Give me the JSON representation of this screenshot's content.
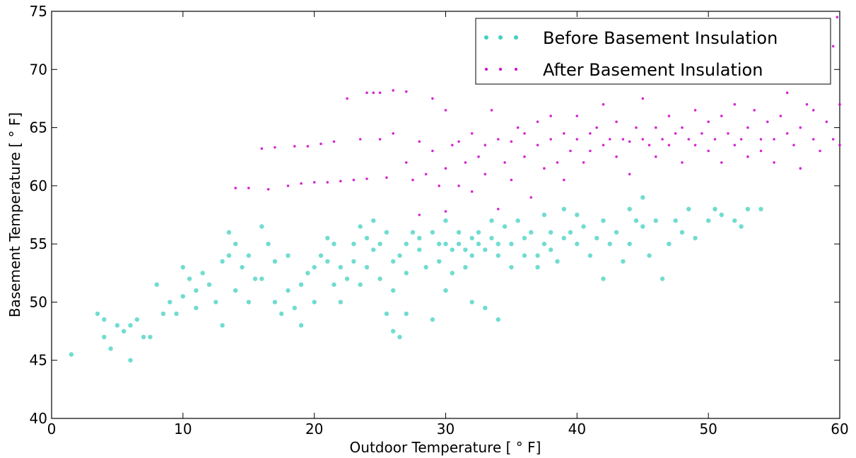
{
  "chart_data": {
    "type": "scatter",
    "title": "",
    "xlabel": "Outdoor Temperature [$^\\circ$F]",
    "xlabel_display": "Outdoor Temperature [ ° F]",
    "ylabel": "Basement Temperature [$^\\circ$F]",
    "ylabel_display": "Basement Temperature [ ° F]",
    "xlim": [
      0,
      60
    ],
    "ylim": [
      40,
      75
    ],
    "xticks": [
      0,
      10,
      20,
      30,
      40,
      50,
      60
    ],
    "xtick_labels": [
      "0",
      "10",
      "20",
      "30",
      "40",
      "50",
      "60"
    ],
    "yticks": [
      40,
      45,
      50,
      55,
      60,
      65,
      70,
      75
    ],
    "ytick_labels": [
      "40",
      "45",
      "50",
      "55",
      "60",
      "65",
      "70",
      "75"
    ],
    "grid": false,
    "legend_position": "top-right",
    "series": [
      {
        "name": "Before Basement Insulation",
        "color": "#40d0c0",
        "marker": "circle",
        "points": [
          [
            1.5,
            45.5
          ],
          [
            3.5,
            49
          ],
          [
            4,
            48.5
          ],
          [
            4,
            47
          ],
          [
            4.5,
            46
          ],
          [
            5,
            48
          ],
          [
            5.5,
            47.5
          ],
          [
            6,
            45
          ],
          [
            6,
            48
          ],
          [
            6.5,
            48.5
          ],
          [
            7,
            47
          ],
          [
            7.5,
            47
          ],
          [
            8,
            51.5
          ],
          [
            8.5,
            49
          ],
          [
            9,
            50
          ],
          [
            9.5,
            49
          ],
          [
            10,
            50.5
          ],
          [
            10,
            53
          ],
          [
            10.5,
            52
          ],
          [
            11,
            49.5
          ],
          [
            11,
            51
          ],
          [
            11.5,
            52.5
          ],
          [
            12,
            51.5
          ],
          [
            12.5,
            50
          ],
          [
            13,
            53.5
          ],
          [
            13,
            48
          ],
          [
            13.5,
            54
          ],
          [
            13.5,
            56
          ],
          [
            14,
            55
          ],
          [
            14,
            51
          ],
          [
            14.5,
            53
          ],
          [
            15,
            54
          ],
          [
            15,
            50
          ],
          [
            15.5,
            52
          ],
          [
            16,
            52
          ],
          [
            16,
            56.5
          ],
          [
            16.5,
            55
          ],
          [
            17,
            53.5
          ],
          [
            17,
            50
          ],
          [
            17.5,
            49
          ],
          [
            18,
            51
          ],
          [
            18,
            54
          ],
          [
            18.5,
            49.5
          ],
          [
            19,
            51.5
          ],
          [
            19,
            48
          ],
          [
            19.5,
            52.5
          ],
          [
            20,
            53
          ],
          [
            20,
            50
          ],
          [
            20.5,
            54
          ],
          [
            21,
            53.5
          ],
          [
            21,
            55.5
          ],
          [
            21.5,
            55
          ],
          [
            21.5,
            51.5
          ],
          [
            22,
            53
          ],
          [
            22,
            50
          ],
          [
            22.5,
            52
          ],
          [
            23,
            55
          ],
          [
            23,
            53.5
          ],
          [
            23.5,
            56.5
          ],
          [
            23.5,
            51.5
          ],
          [
            24,
            55.5
          ],
          [
            24,
            53
          ],
          [
            24.5,
            54.5
          ],
          [
            24.5,
            57
          ],
          [
            25,
            55
          ],
          [
            25,
            52
          ],
          [
            25.5,
            56
          ],
          [
            25.5,
            49
          ],
          [
            26,
            51
          ],
          [
            26,
            53.5
          ],
          [
            26,
            47.5
          ],
          [
            26.5,
            47
          ],
          [
            26.5,
            54
          ],
          [
            27,
            55
          ],
          [
            27,
            52.5
          ],
          [
            27,
            49
          ],
          [
            27.5,
            56
          ],
          [
            28,
            54.5
          ],
          [
            28,
            55.5
          ],
          [
            28.5,
            53
          ],
          [
            29,
            56
          ],
          [
            29,
            48.5
          ],
          [
            29.5,
            55
          ],
          [
            29.5,
            53.5
          ],
          [
            30,
            57
          ],
          [
            30,
            55
          ],
          [
            30,
            51
          ],
          [
            30.5,
            54.5
          ],
          [
            30.5,
            52.5
          ],
          [
            31,
            55
          ],
          [
            31,
            56
          ],
          [
            31.5,
            54.5
          ],
          [
            31.5,
            53
          ],
          [
            32,
            55.5
          ],
          [
            32,
            54
          ],
          [
            32,
            50
          ],
          [
            32.5,
            55
          ],
          [
            32.5,
            56
          ],
          [
            33,
            54.5
          ],
          [
            33,
            49.5
          ],
          [
            33.5,
            55.5
          ],
          [
            33.5,
            57
          ],
          [
            34,
            54
          ],
          [
            34,
            55
          ],
          [
            34,
            48.5
          ],
          [
            34.5,
            56.5
          ],
          [
            35,
            55
          ],
          [
            35,
            53
          ],
          [
            35.5,
            57
          ],
          [
            36,
            55.5
          ],
          [
            36,
            54
          ],
          [
            36.5,
            56
          ],
          [
            37,
            54
          ],
          [
            37,
            53
          ],
          [
            37.5,
            55
          ],
          [
            37.5,
            57.5
          ],
          [
            38,
            54.5
          ],
          [
            38,
            56
          ],
          [
            38.5,
            53.5
          ],
          [
            39,
            55.5
          ],
          [
            39,
            58
          ],
          [
            39.5,
            56
          ],
          [
            40,
            55
          ],
          [
            40,
            57.5
          ],
          [
            40.5,
            56.5
          ],
          [
            41,
            54
          ],
          [
            41.5,
            55.5
          ],
          [
            42,
            52
          ],
          [
            42,
            57
          ],
          [
            42.5,
            55
          ],
          [
            43,
            56
          ],
          [
            43.5,
            53.5
          ],
          [
            44,
            55
          ],
          [
            44,
            58
          ],
          [
            44.5,
            57
          ],
          [
            45,
            56.5
          ],
          [
            45,
            59
          ],
          [
            45.5,
            54
          ],
          [
            46,
            57
          ],
          [
            46.5,
            52
          ],
          [
            47,
            55
          ],
          [
            47.5,
            57
          ],
          [
            48,
            56
          ],
          [
            48.5,
            58
          ],
          [
            49,
            55.5
          ],
          [
            50,
            57
          ],
          [
            50.5,
            58
          ],
          [
            51,
            57.5
          ],
          [
            52,
            57
          ],
          [
            52.5,
            56.5
          ],
          [
            53,
            58
          ],
          [
            54,
            58
          ]
        ]
      },
      {
        "name": "After Basement Insulation",
        "color": "#cc00cc",
        "marker": "circle",
        "points": [
          [
            14,
            59.8
          ],
          [
            15,
            59.8
          ],
          [
            16,
            63.2
          ],
          [
            16.5,
            59.7
          ],
          [
            17,
            63.3
          ],
          [
            18,
            60
          ],
          [
            18.5,
            63.4
          ],
          [
            19,
            60.2
          ],
          [
            19.5,
            63.4
          ],
          [
            20,
            60.3
          ],
          [
            20.5,
            63.6
          ],
          [
            21,
            60.3
          ],
          [
            21.5,
            63.8
          ],
          [
            22,
            60.4
          ],
          [
            22.5,
            67.5
          ],
          [
            23,
            60.5
          ],
          [
            23.5,
            64
          ],
          [
            24,
            60.6
          ],
          [
            24,
            68
          ],
          [
            24.5,
            68
          ],
          [
            25,
            68
          ],
          [
            25,
            64
          ],
          [
            25.5,
            60.7
          ],
          [
            26,
            68.2
          ],
          [
            26,
            64.5
          ],
          [
            27,
            68.1
          ],
          [
            27,
            62
          ],
          [
            27.5,
            60.5
          ],
          [
            28,
            63.8
          ],
          [
            28,
            57.5
          ],
          [
            28.5,
            61
          ],
          [
            29,
            63
          ],
          [
            29,
            67.5
          ],
          [
            29.5,
            60
          ],
          [
            30,
            66.5
          ],
          [
            30,
            61.5
          ],
          [
            30,
            57.8
          ],
          [
            30.5,
            63.5
          ],
          [
            31,
            60
          ],
          [
            31,
            63.8
          ],
          [
            31.5,
            62
          ],
          [
            32,
            59.5
          ],
          [
            32,
            64.5
          ],
          [
            32.5,
            62.5
          ],
          [
            33,
            63.5
          ],
          [
            33,
            61
          ],
          [
            33.5,
            66.5
          ],
          [
            34,
            64
          ],
          [
            34,
            58
          ],
          [
            34.5,
            62
          ],
          [
            35,
            63.8
          ],
          [
            35,
            60.5
          ],
          [
            35.5,
            65
          ],
          [
            36,
            62.5
          ],
          [
            36,
            64.5
          ],
          [
            36.5,
            59
          ],
          [
            37,
            63.5
          ],
          [
            37,
            65.5
          ],
          [
            37.5,
            61.5
          ],
          [
            38,
            64
          ],
          [
            38,
            66
          ],
          [
            38.5,
            62
          ],
          [
            39,
            64.5
          ],
          [
            39,
            60.5
          ],
          [
            39.5,
            63
          ],
          [
            40,
            64
          ],
          [
            40,
            66
          ],
          [
            40.5,
            62
          ],
          [
            41,
            64.5
          ],
          [
            41,
            63
          ],
          [
            41.5,
            65
          ],
          [
            42,
            63.5
          ],
          [
            42,
            67
          ],
          [
            42.5,
            64
          ],
          [
            43,
            62.5
          ],
          [
            43,
            65.5
          ],
          [
            43.5,
            64
          ],
          [
            44,
            63.8
          ],
          [
            44,
            61
          ],
          [
            44.5,
            65
          ],
          [
            45,
            64
          ],
          [
            45,
            67.5
          ],
          [
            45.5,
            63.5
          ],
          [
            46,
            65
          ],
          [
            46,
            62.5
          ],
          [
            46.5,
            64
          ],
          [
            47,
            63.5
          ],
          [
            47,
            66
          ],
          [
            47.5,
            64.5
          ],
          [
            48,
            62
          ],
          [
            48,
            65
          ],
          [
            48.5,
            64
          ],
          [
            49,
            63.5
          ],
          [
            49,
            66.5
          ],
          [
            49.5,
            64.5
          ],
          [
            50,
            63
          ],
          [
            50,
            65.5
          ],
          [
            50.5,
            64
          ],
          [
            51,
            62
          ],
          [
            51,
            66
          ],
          [
            51.5,
            64.5
          ],
          [
            52,
            63.5
          ],
          [
            52,
            67
          ],
          [
            52.5,
            64
          ],
          [
            53,
            65
          ],
          [
            53,
            62.5
          ],
          [
            53.5,
            66.5
          ],
          [
            54,
            64
          ],
          [
            54,
            63
          ],
          [
            54.5,
            65.5
          ],
          [
            55,
            64
          ],
          [
            55,
            62
          ],
          [
            55.5,
            66
          ],
          [
            56,
            64.5
          ],
          [
            56,
            68
          ],
          [
            56.5,
            63.5
          ],
          [
            57,
            65
          ],
          [
            57,
            61.5
          ],
          [
            57.5,
            67
          ],
          [
            58,
            64
          ],
          [
            58,
            66.5
          ],
          [
            58.5,
            63
          ],
          [
            59,
            65.5
          ],
          [
            59,
            69
          ],
          [
            59.5,
            64
          ],
          [
            59.5,
            72
          ],
          [
            60,
            67
          ],
          [
            60,
            63.5
          ],
          [
            59.8,
            74.5
          ]
        ]
      }
    ]
  }
}
